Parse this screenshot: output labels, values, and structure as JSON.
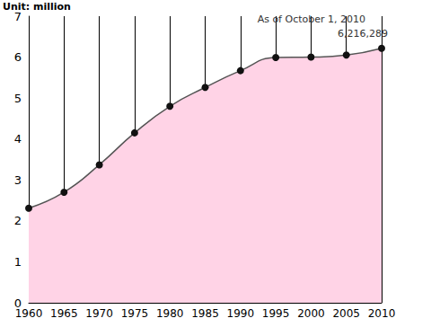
{
  "chart_data": {
    "type": "area",
    "ylabel": "Unit: million",
    "x": [
      1960,
      1965,
      1970,
      1975,
      1980,
      1985,
      1990,
      1995,
      2000,
      2005,
      2010
    ],
    "values": [
      2.31,
      2.7,
      3.37,
      4.15,
      4.8,
      5.26,
      5.67,
      5.99,
      6.0,
      6.05,
      6.216289
    ],
    "color": "#ffd3e6",
    "marker": "circle",
    "xlim": [
      1960,
      2010
    ],
    "xticks": [
      1960,
      1965,
      1970,
      1975,
      1980,
      1985,
      1990,
      1995,
      2000,
      2005,
      2010
    ],
    "ylim": [
      0,
      7
    ],
    "yticks": [
      0,
      1,
      2,
      3,
      4,
      5,
      6,
      7
    ],
    "grid": "x",
    "annotations": [
      {
        "x": 2010,
        "y": 6.216289,
        "text": "As of October 1, 2010"
      },
      {
        "x": 2010,
        "y": 6.216289,
        "text": "6,216,289"
      }
    ]
  }
}
